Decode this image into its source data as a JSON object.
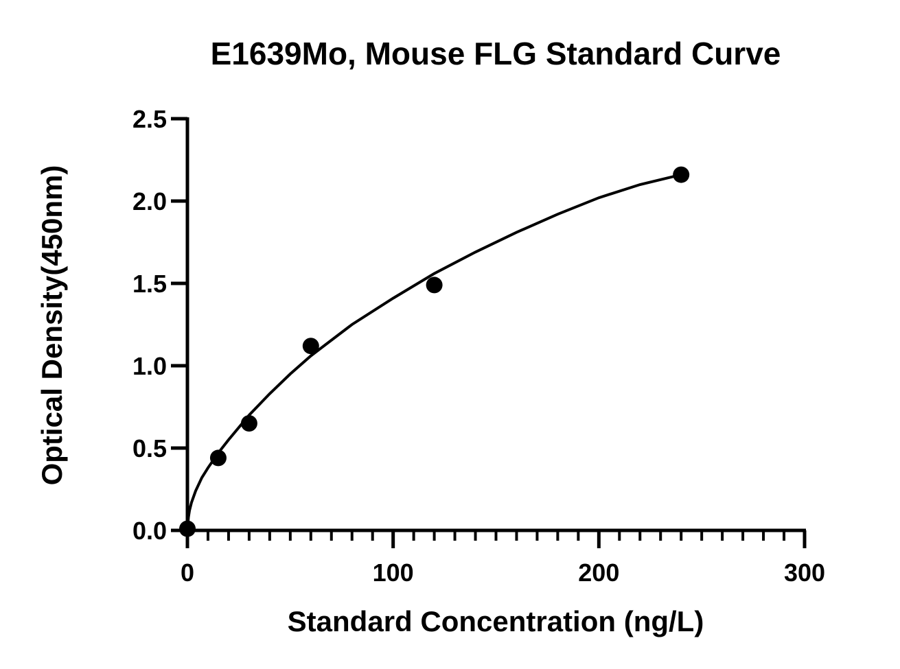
{
  "chart_data": {
    "type": "scatter",
    "title": "E1639Mo, Mouse FLG Standard Curve",
    "xlabel": "Standard Concentration (ng/L)",
    "ylabel": "Optical Density(450nm)",
    "xlim": [
      0,
      300
    ],
    "ylim": [
      0,
      2.5
    ],
    "x_ticks": [
      "0",
      "100",
      "200",
      "300"
    ],
    "y_ticks": [
      "0.0",
      "0.5",
      "1.0",
      "1.5",
      "2.0",
      "2.5"
    ],
    "grid": false,
    "legend": "none",
    "series": [
      {
        "x": [
          0,
          15,
          30,
          60,
          120,
          240
        ],
        "y": [
          0.01,
          0.44,
          0.65,
          1.12,
          1.49,
          2.16
        ]
      }
    ],
    "fit_curve": {
      "type": "line",
      "x": [
        0,
        0.5,
        1,
        2,
        4,
        7,
        10,
        15,
        20,
        30,
        40,
        50,
        60,
        80,
        100,
        120,
        140,
        160,
        180,
        200,
        220,
        240
      ],
      "y": [
        0.0,
        0.08,
        0.12,
        0.17,
        0.24,
        0.32,
        0.38,
        0.47,
        0.55,
        0.7,
        0.83,
        0.95,
        1.06,
        1.25,
        1.41,
        1.56,
        1.69,
        1.81,
        1.92,
        2.02,
        2.1,
        2.16
      ]
    }
  }
}
